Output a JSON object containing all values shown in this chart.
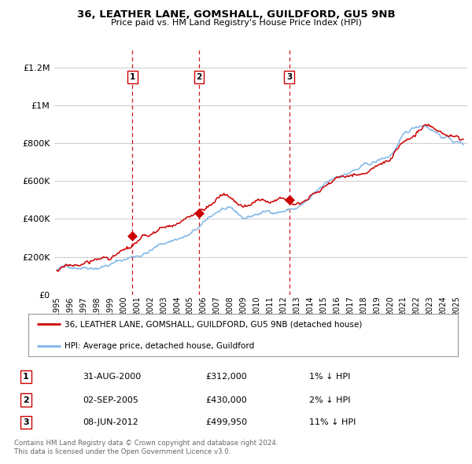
{
  "title": "36, LEATHER LANE, GOMSHALL, GUILDFORD, GU5 9NB",
  "subtitle": "Price paid vs. HM Land Registry's House Price Index (HPI)",
  "ytick_values": [
    0,
    200000,
    400000,
    600000,
    800000,
    1000000,
    1200000
  ],
  "ylim": [
    0,
    1300000
  ],
  "xlim_start": 1994.8,
  "xlim_end": 2025.8,
  "xtick_years": [
    1995,
    1996,
    1997,
    1998,
    1999,
    2000,
    2001,
    2002,
    2003,
    2004,
    2005,
    2006,
    2007,
    2008,
    2009,
    2010,
    2011,
    2012,
    2013,
    2014,
    2015,
    2016,
    2017,
    2018,
    2019,
    2020,
    2021,
    2022,
    2023,
    2024,
    2025
  ],
  "transactions": [
    {
      "id": 1,
      "date_x": 2000.667,
      "price": 312000,
      "label": "1",
      "date_str": "31-AUG-2000",
      "price_str": "£312,000",
      "pct": "1%",
      "direction": "↓"
    },
    {
      "id": 2,
      "date_x": 2005.669,
      "price": 430000,
      "label": "2",
      "date_str": "02-SEP-2005",
      "price_str": "£430,000",
      "pct": "2%",
      "direction": "↓"
    },
    {
      "id": 3,
      "date_x": 2012.436,
      "price": 499950,
      "label": "3",
      "date_str": "08-JUN-2012",
      "price_str": "£499,950",
      "pct": "11%",
      "direction": "↓"
    }
  ],
  "hpi_color": "#7EB6E8",
  "sale_color": "#CC0000",
  "dashed_line_color": "#CC0000",
  "legend_label_sale": "36, LEATHER LANE, GOMSHALL, GUILDFORD, GU5 9NB (detached house)",
  "legend_label_hpi": "HPI: Average price, detached house, Guildford",
  "footer_line1": "Contains HM Land Registry data © Crown copyright and database right 2024.",
  "footer_line2": "This data is licensed under the Open Government Licence v3.0.",
  "background_color": "#ffffff",
  "plot_bg_color": "#ffffff",
  "grid_color": "#cccccc"
}
